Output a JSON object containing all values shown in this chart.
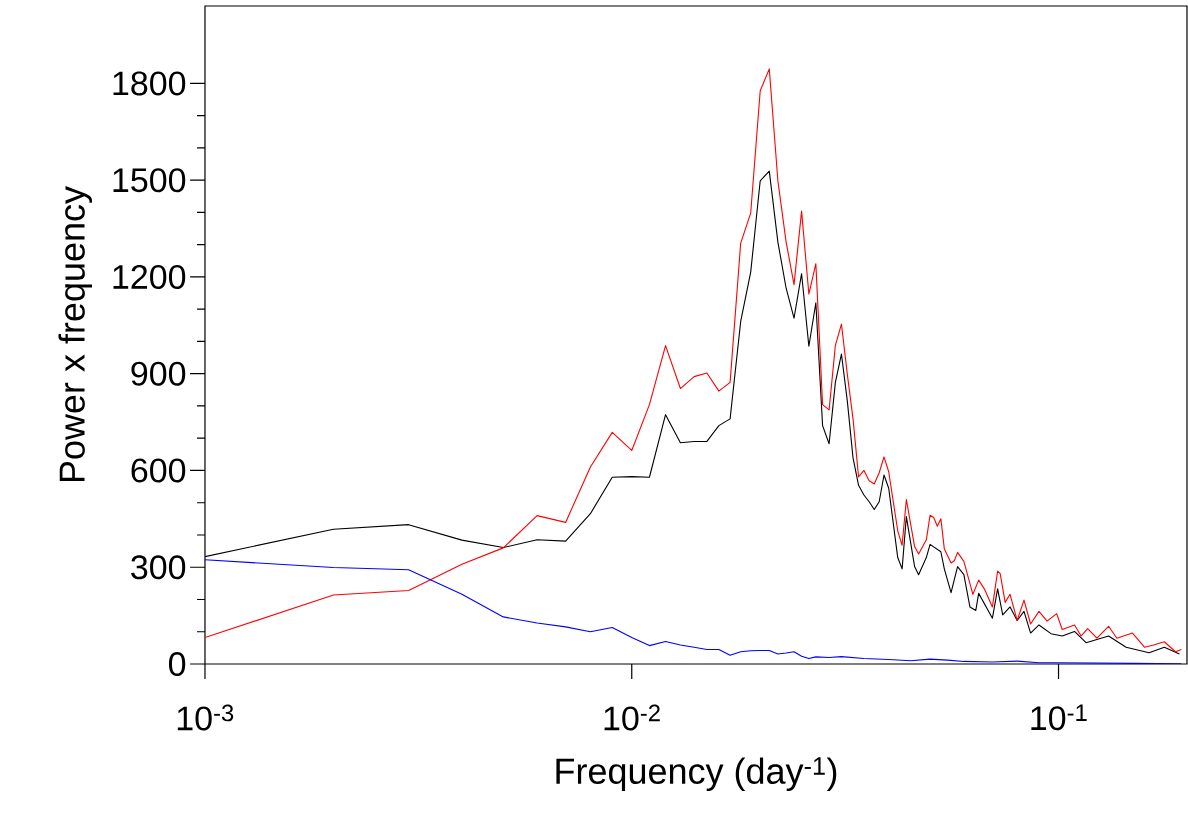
{
  "chart_data": {
    "type": "line",
    "xlabel": "Frequency (day$^{-1}$)",
    "ylabel": "Power x frequency",
    "log": "x",
    "xlim": [
      0.001,
      0.2
    ],
    "ylim": [
      0,
      2040
    ],
    "xticks": [
      {
        "value": 0.001,
        "label": "10$^{-3}$"
      },
      {
        "value": 0.01,
        "label": "10$^{-2}$"
      },
      {
        "value": 0.1,
        "label": "10$^{-1}$"
      }
    ],
    "yticks": [
      0,
      300,
      600,
      900,
      1200,
      1500,
      1800
    ],
    "series": [
      {
        "color": "#000000",
        "x": [
          0.001,
          0.002,
          0.003,
          0.004,
          0.005,
          0.006,
          0.007,
          0.008,
          0.009,
          0.01,
          0.011,
          0.012,
          0.013,
          0.014,
          0.015,
          0.016,
          0.017,
          0.018,
          0.019,
          0.02,
          0.021,
          0.022,
          0.023,
          0.024,
          0.025,
          0.026,
          0.027,
          0.028,
          0.029,
          0.03,
          0.031,
          0.032,
          0.033,
          0.034,
          0.035,
          0.036,
          0.037,
          0.038,
          0.039,
          0.04,
          0.042,
          0.043,
          0.044,
          0.046,
          0.047,
          0.049,
          0.05,
          0.053,
          0.054,
          0.056,
          0.058,
          0.06,
          0.062,
          0.064,
          0.065,
          0.07,
          0.072,
          0.074,
          0.077,
          0.08,
          0.083,
          0.086,
          0.09,
          0.096,
          0.102,
          0.109,
          0.116,
          0.131,
          0.144,
          0.163,
          0.177,
          0.192
        ],
        "values": [
          333,
          418,
          432,
          384,
          361,
          385,
          381,
          466,
          579,
          581,
          579,
          773,
          686,
          690,
          690,
          739,
          760,
          1062,
          1215,
          1498,
          1528,
          1308,
          1165,
          1072,
          1210,
          985,
          1120,
          739,
          683,
          873,
          961,
          815,
          639,
          554,
          524,
          503,
          479,
          503,
          586,
          545,
          330,
          295,
          457,
          302,
          277,
          330,
          371,
          348,
          295,
          221,
          302,
          277,
          177,
          166,
          219,
          142,
          233,
          152,
          177,
          135,
          163,
          96,
          121,
          94,
          87,
          101,
          66,
          87,
          52,
          35,
          52,
          31
        ]
      },
      {
        "color": "#ff0000",
        "x": [
          0.001,
          0.002,
          0.003,
          0.004,
          0.005,
          0.006,
          0.007,
          0.008,
          0.009,
          0.01,
          0.011,
          0.012,
          0.013,
          0.014,
          0.015,
          0.016,
          0.017,
          0.018,
          0.019,
          0.02,
          0.021,
          0.022,
          0.023,
          0.024,
          0.025,
          0.026,
          0.027,
          0.028,
          0.029,
          0.03,
          0.031,
          0.032,
          0.033,
          0.034,
          0.035,
          0.036,
          0.037,
          0.038,
          0.039,
          0.04,
          0.042,
          0.043,
          0.044,
          0.046,
          0.047,
          0.049,
          0.05,
          0.051,
          0.052,
          0.053,
          0.054,
          0.056,
          0.057,
          0.058,
          0.06,
          0.063,
          0.065,
          0.067,
          0.07,
          0.072,
          0.073,
          0.075,
          0.077,
          0.08,
          0.083,
          0.086,
          0.09,
          0.094,
          0.099,
          0.102,
          0.109,
          0.113,
          0.117,
          0.123,
          0.131,
          0.137,
          0.149,
          0.159,
          0.167,
          0.177,
          0.188,
          0.194
        ],
        "values": [
          82,
          214,
          228,
          309,
          360,
          460,
          439,
          611,
          718,
          662,
          804,
          987,
          854,
          891,
          902,
          846,
          873,
          1305,
          1398,
          1777,
          1845,
          1498,
          1308,
          1176,
          1404,
          1147,
          1241,
          804,
          788,
          988,
          1054,
          898,
          760,
          580,
          600,
          568,
          558,
          593,
          642,
          596,
          413,
          368,
          510,
          364,
          341,
          385,
          461,
          454,
          427,
          450,
          357,
          313,
          320,
          346,
          318,
          216,
          260,
          233,
          177,
          288,
          280,
          191,
          216,
          135,
          198,
          124,
          163,
          133,
          156,
          107,
          121,
          87,
          110,
          80,
          117,
          80,
          96,
          52,
          59,
          69,
          38,
          45
        ]
      },
      {
        "color": "#0000ff",
        "x": [
          0.001,
          0.002,
          0.003,
          0.004,
          0.005,
          0.006,
          0.007,
          0.008,
          0.009,
          0.01,
          0.011,
          0.012,
          0.013,
          0.014,
          0.015,
          0.016,
          0.017,
          0.018,
          0.019,
          0.02,
          0.021,
          0.022,
          0.023,
          0.024,
          0.025,
          0.026,
          0.027,
          0.029,
          0.031,
          0.035,
          0.04,
          0.045,
          0.05,
          0.055,
          0.06,
          0.07,
          0.08,
          0.09,
          0.1,
          0.15,
          0.194
        ],
        "values": [
          323,
          299,
          292,
          216,
          146,
          127,
          115,
          100,
          113,
          82,
          57,
          70,
          59,
          52,
          45,
          45,
          27,
          38,
          41,
          42,
          42,
          31,
          34,
          38,
          24,
          17,
          22,
          20,
          23,
          17,
          14,
          10,
          15,
          12,
          8,
          6,
          9,
          4,
          4,
          2,
          1
        ]
      }
    ]
  }
}
